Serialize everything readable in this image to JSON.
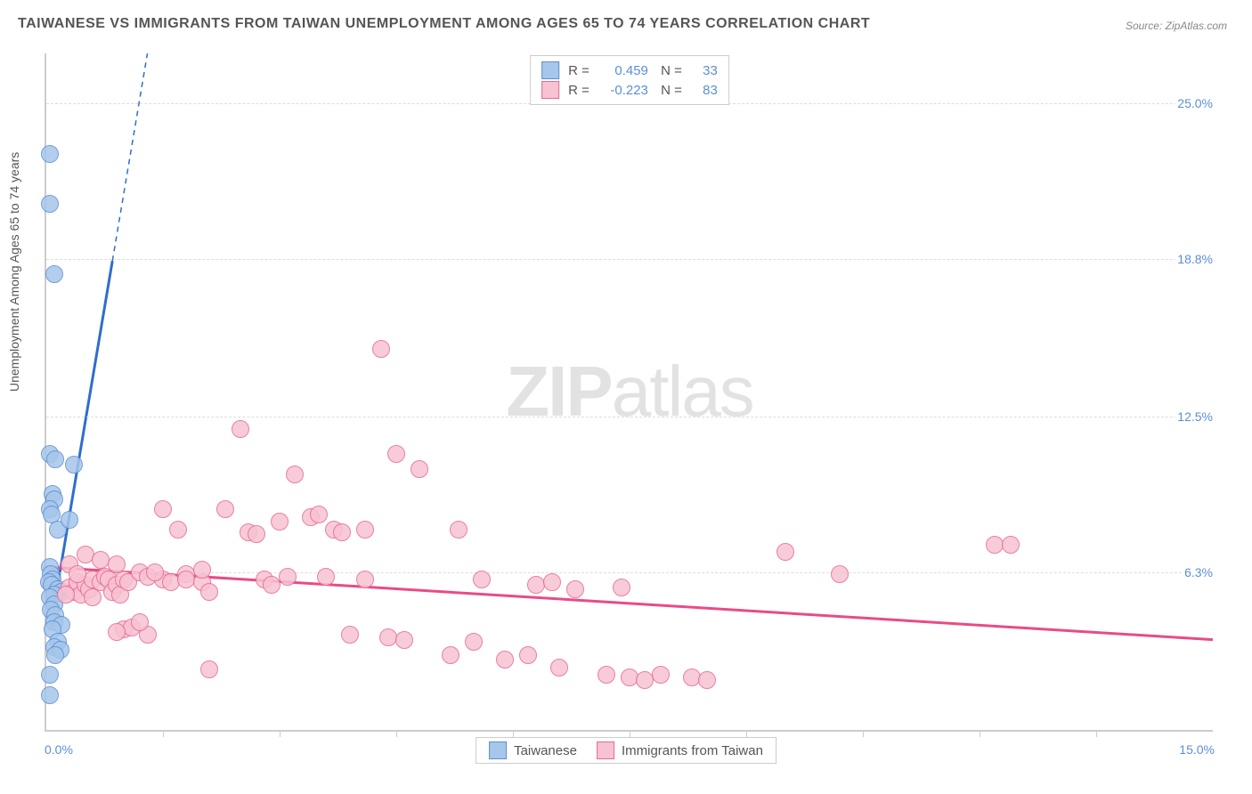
{
  "chart": {
    "title": "TAIWANESE VS IMMIGRANTS FROM TAIWAN UNEMPLOYMENT AMONG AGES 65 TO 74 YEARS CORRELATION CHART",
    "source": "Source: ZipAtlas.com",
    "y_label": "Unemployment Among Ages 65 to 74 years",
    "watermark_a": "ZIP",
    "watermark_b": "atlas",
    "type": "scatter",
    "xlim": [
      0.0,
      15.0
    ],
    "ylim": [
      0.0,
      27.0
    ],
    "x_ticks_minor": [
      1.5,
      3.0,
      4.5,
      6.0,
      7.5,
      9.0,
      10.5,
      12.0,
      13.5
    ],
    "x_labels": {
      "min": "0.0%",
      "max": "15.0%"
    },
    "y_gridlines": [
      {
        "value": 6.3,
        "label": "6.3%"
      },
      {
        "value": 12.5,
        "label": "12.5%"
      },
      {
        "value": 18.8,
        "label": "18.8%"
      },
      {
        "value": 25.0,
        "label": "25.0%"
      }
    ],
    "background_color": "#ffffff",
    "grid_color": "#dddddd",
    "axis_color": "#cccccc",
    "label_color": "#5b8fd6",
    "text_color": "#555555",
    "title_fontsize": 16,
    "label_fontsize": 14,
    "marker_radius": 9,
    "marker_border_width": 1.5,
    "marker_fill_opacity": 0.25,
    "series": [
      {
        "name": "Taiwanese",
        "marker_fill": "#a6c6ea",
        "marker_stroke": "#5b8fd6",
        "trend_color": "#2f6ecb",
        "R": "0.459",
        "N": "33",
        "trend_line": {
          "x1": 0.05,
          "y1": 4.0,
          "x2": 1.3,
          "y2": 27.0
        },
        "trend_dashed_from_x": 0.85,
        "points": [
          [
            0.05,
            23.0
          ],
          [
            0.05,
            21.0
          ],
          [
            0.1,
            18.2
          ],
          [
            0.05,
            11.0
          ],
          [
            0.12,
            10.8
          ],
          [
            0.35,
            10.6
          ],
          [
            0.08,
            9.4
          ],
          [
            0.1,
            9.2
          ],
          [
            0.05,
            8.8
          ],
          [
            0.07,
            8.6
          ],
          [
            0.15,
            8.0
          ],
          [
            0.3,
            8.4
          ],
          [
            0.05,
            6.5
          ],
          [
            0.06,
            6.2
          ],
          [
            0.08,
            6.0
          ],
          [
            0.04,
            5.9
          ],
          [
            0.07,
            5.8
          ],
          [
            0.15,
            5.6
          ],
          [
            0.2,
            5.5
          ],
          [
            0.1,
            5.4
          ],
          [
            0.05,
            5.3
          ],
          [
            0.1,
            5.0
          ],
          [
            0.06,
            4.8
          ],
          [
            0.12,
            4.6
          ],
          [
            0.1,
            4.3
          ],
          [
            0.2,
            4.2
          ],
          [
            0.08,
            4.0
          ],
          [
            0.15,
            3.5
          ],
          [
            0.1,
            3.3
          ],
          [
            0.18,
            3.2
          ],
          [
            0.12,
            3.0
          ],
          [
            0.05,
            2.2
          ],
          [
            0.05,
            1.4
          ]
        ]
      },
      {
        "name": "Immigrants from Taiwan",
        "marker_fill": "#f7c2d2",
        "marker_stroke": "#e66a94",
        "trend_color": "#e94b86",
        "R": "-0.223",
        "N": "83",
        "trend_line": {
          "x1": 0.0,
          "y1": 6.5,
          "x2": 15.0,
          "y2": 3.6
        },
        "trend_dashed_from_x": null,
        "points": [
          [
            0.3,
            5.7
          ],
          [
            0.35,
            5.5
          ],
          [
            0.4,
            5.9
          ],
          [
            0.45,
            5.4
          ],
          [
            0.5,
            5.8
          ],
          [
            0.55,
            5.6
          ],
          [
            0.6,
            5.3
          ],
          [
            0.6,
            6.0
          ],
          [
            0.7,
            5.9
          ],
          [
            0.75,
            6.1
          ],
          [
            0.8,
            6.0
          ],
          [
            0.85,
            5.5
          ],
          [
            0.9,
            5.8
          ],
          [
            0.95,
            5.4
          ],
          [
            1.0,
            6.0
          ],
          [
            1.05,
            5.9
          ],
          [
            0.5,
            7.0
          ],
          [
            0.7,
            6.8
          ],
          [
            0.9,
            6.6
          ],
          [
            1.2,
            6.3
          ],
          [
            1.3,
            6.1
          ],
          [
            1.5,
            6.0
          ],
          [
            1.6,
            5.9
          ],
          [
            1.8,
            6.2
          ],
          [
            1.0,
            4.0
          ],
          [
            1.1,
            4.1
          ],
          [
            0.9,
            3.9
          ],
          [
            1.3,
            3.8
          ],
          [
            1.2,
            4.3
          ],
          [
            1.5,
            8.8
          ],
          [
            1.7,
            8.0
          ],
          [
            1.8,
            6.0
          ],
          [
            2.0,
            5.9
          ],
          [
            2.0,
            6.4
          ],
          [
            2.1,
            5.5
          ],
          [
            2.1,
            2.4
          ],
          [
            2.3,
            8.8
          ],
          [
            2.5,
            12.0
          ],
          [
            2.6,
            7.9
          ],
          [
            2.7,
            7.8
          ],
          [
            2.8,
            6.0
          ],
          [
            2.9,
            5.8
          ],
          [
            3.0,
            8.3
          ],
          [
            3.1,
            6.1
          ],
          [
            3.2,
            10.2
          ],
          [
            3.4,
            8.5
          ],
          [
            3.5,
            8.6
          ],
          [
            3.6,
            6.1
          ],
          [
            3.7,
            8.0
          ],
          [
            3.8,
            7.9
          ],
          [
            3.9,
            3.8
          ],
          [
            4.1,
            8.0
          ],
          [
            4.1,
            6.0
          ],
          [
            4.3,
            15.2
          ],
          [
            4.4,
            3.7
          ],
          [
            4.5,
            11.0
          ],
          [
            4.6,
            3.6
          ],
          [
            4.8,
            10.4
          ],
          [
            5.2,
            3.0
          ],
          [
            5.3,
            8.0
          ],
          [
            5.5,
            3.5
          ],
          [
            5.6,
            6.0
          ],
          [
            5.9,
            2.8
          ],
          [
            6.2,
            3.0
          ],
          [
            6.3,
            5.8
          ],
          [
            6.5,
            5.9
          ],
          [
            6.6,
            2.5
          ],
          [
            6.8,
            5.6
          ],
          [
            7.2,
            2.2
          ],
          [
            7.4,
            5.7
          ],
          [
            7.5,
            2.1
          ],
          [
            7.7,
            2.0
          ],
          [
            7.9,
            2.2
          ],
          [
            8.3,
            2.1
          ],
          [
            8.5,
            2.0
          ],
          [
            9.5,
            7.1
          ],
          [
            10.2,
            6.2
          ],
          [
            12.2,
            7.4
          ],
          [
            12.4,
            7.4
          ],
          [
            1.4,
            6.3
          ],
          [
            0.3,
            6.6
          ],
          [
            0.4,
            6.2
          ],
          [
            0.25,
            5.4
          ]
        ]
      }
    ]
  }
}
